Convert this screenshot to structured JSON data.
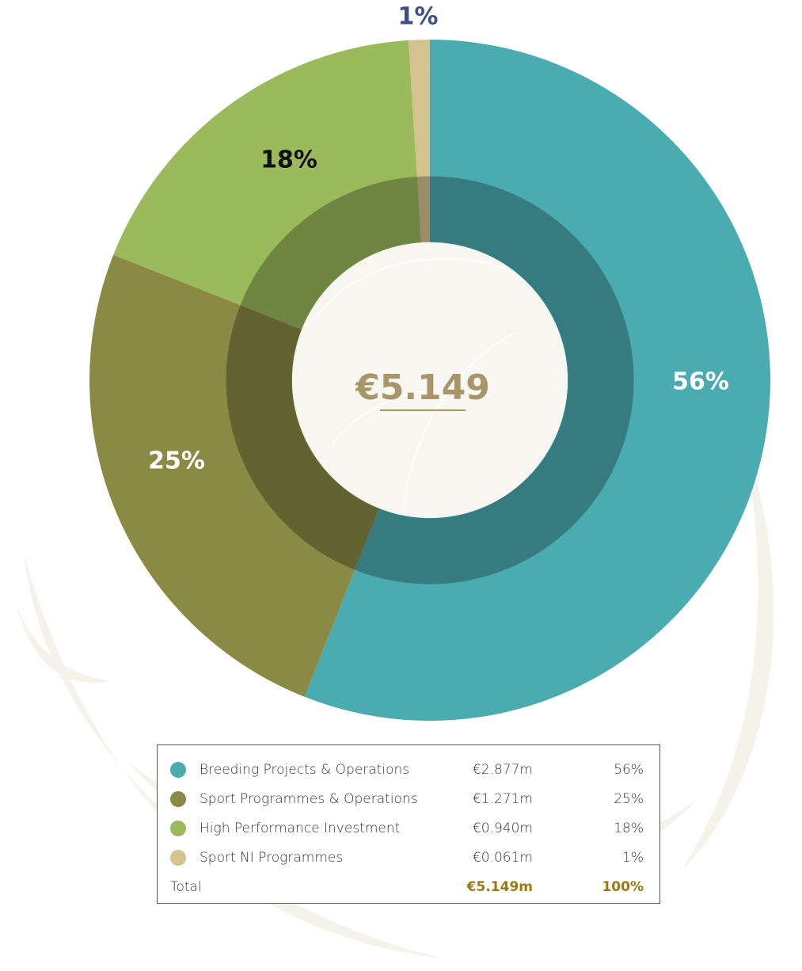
{
  "chart_data": {
    "type": "pie",
    "donut": true,
    "center_label": "€5.149",
    "categories": [
      "Breeding Projects & Operations",
      "Sport Programmes & Operations",
      "High Performance Investment",
      "Sport NI Programmes"
    ],
    "values": [
      56,
      25,
      18,
      1
    ],
    "value_labels": [
      "56%",
      "25%",
      "18%",
      "1%"
    ],
    "colors": [
      "#4aabb0",
      "#8a8a45",
      "#9aba5c",
      "#d4c38f"
    ],
    "label_colors": [
      "#ffffff",
      "#ffffff",
      "#111111",
      "#3d4f8a"
    ]
  },
  "table": {
    "amounts": [
      "€2.877m",
      "€1.271m",
      "€0.940m",
      "€0.061m"
    ],
    "total_label": "Total",
    "total_amount": "€5.149m",
    "total_percent": "100%"
  }
}
